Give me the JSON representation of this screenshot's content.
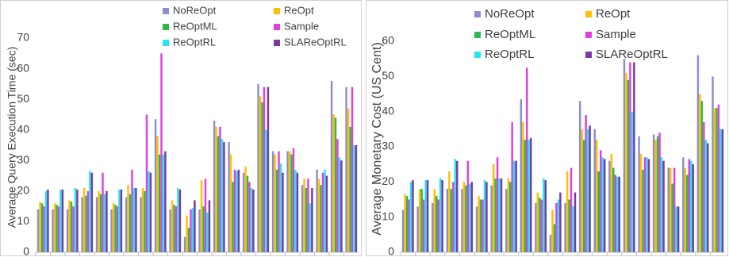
{
  "chart_data": [
    {
      "type": "bar",
      "y_label": "Average Query Execution Time (sec)",
      "categories": [
        null,
        null,
        null,
        null,
        null,
        null,
        null,
        null,
        null,
        null,
        null,
        null,
        null,
        null,
        null,
        null,
        null,
        null,
        null,
        null,
        null,
        null
      ],
      "ylim": [
        0,
        70
      ],
      "yticks": [
        0,
        10,
        20,
        30,
        40,
        50,
        60,
        70
      ],
      "series": [
        {
          "name": "NoReOpt",
          "color": "#8c8fcf",
          "values": [
            14,
            14,
            14,
            18,
            18,
            14,
            18,
            18,
            43.5,
            14,
            5,
            14,
            43,
            36,
            26,
            55,
            33,
            33,
            22,
            27,
            56,
            54
          ]
        },
        {
          "name": "ReOpt",
          "color": "#ffc000",
          "values": [
            16.5,
            16,
            17,
            21,
            20,
            16,
            22,
            21,
            38,
            17,
            12,
            23.5,
            41,
            32,
            28,
            51,
            32,
            33,
            24,
            24,
            45,
            47
          ]
        },
        {
          "name": "ReOptML",
          "color": "#2db84a",
          "values": [
            16,
            15.5,
            16.5,
            18.5,
            19,
            15.5,
            19,
            20,
            32,
            15.5,
            8,
            15,
            38,
            23,
            25,
            49,
            27,
            32,
            21,
            22,
            44,
            41
          ]
        },
        {
          "name": "Sample",
          "color": "#e040e0",
          "values": [
            15,
            15,
            15,
            20,
            26,
            15,
            27,
            45,
            65,
            15,
            14,
            24,
            41,
            27,
            23,
            54,
            33,
            34,
            24,
            26,
            37,
            54
          ]
        },
        {
          "name": "ReOptRL",
          "color": "#22e6f0",
          "values": [
            20,
            20.5,
            21,
            26.5,
            19,
            20.5,
            21,
            26.5,
            32,
            21,
            14.5,
            13,
            37,
            26.5,
            21,
            40,
            29,
            27,
            16,
            27,
            31,
            35
          ]
        },
        {
          "name": "SLAReOptRL",
          "color": "#7a3aa0",
          "values": [
            20.5,
            20.5,
            20.5,
            26,
            20,
            20.5,
            21,
            26,
            33,
            20.5,
            17,
            17,
            36,
            27,
            20.5,
            54,
            26,
            26,
            21,
            25,
            30,
            35
          ]
        }
      ]
    },
    {
      "type": "bar",
      "y_label": "Average Monetary Cost (US Cent)",
      "categories": [
        null,
        null,
        null,
        null,
        null,
        null,
        null,
        null,
        null,
        null,
        null,
        null,
        null,
        null,
        null,
        null,
        null,
        null,
        null,
        null,
        null,
        null
      ],
      "ylim": [
        0,
        60
      ],
      "yticks": [
        0,
        10,
        20,
        30,
        40,
        50,
        60
      ],
      "series": [
        {
          "name": "NoReOpt",
          "color": "#8c8fcf",
          "values": [
            12,
            13,
            14,
            18,
            18,
            13,
            19,
            18,
            43.5,
            14,
            5,
            14,
            43,
            35,
            26,
            55,
            33,
            33.5,
            24,
            27,
            56,
            50
          ]
        },
        {
          "name": "ReOpt",
          "color": "#ffc000",
          "values": [
            16.5,
            18,
            18,
            23,
            20,
            16,
            25,
            21,
            37,
            17,
            12,
            23,
            35,
            32,
            28,
            51,
            28,
            32,
            24,
            24,
            45,
            41
          ]
        },
        {
          "name": "ReOptML",
          "color": "#2db84a",
          "values": [
            16,
            18,
            16,
            18,
            19,
            15,
            21,
            20,
            32,
            15.5,
            8,
            15,
            32,
            23,
            24,
            49,
            23.5,
            33,
            19.5,
            22,
            43,
            41
          ]
        },
        {
          "name": "Sample",
          "color": "#e040e0",
          "values": [
            15,
            15,
            15,
            20,
            26,
            15,
            27,
            37,
            52.5,
            15,
            14,
            24,
            39,
            29,
            22,
            54,
            27,
            34,
            24,
            26.5,
            37,
            42
          ]
        },
        {
          "name": "ReOptRL",
          "color": "#22e6f0",
          "values": [
            20,
            20.5,
            21,
            26.5,
            19.5,
            20.5,
            21,
            26,
            32,
            21,
            15,
            13,
            35,
            27,
            21.5,
            40,
            27,
            27,
            13,
            26,
            32,
            35
          ]
        },
        {
          "name": "SLAReOptRL",
          "color": "#7a3aa0",
          "values": [
            20.5,
            20.5,
            20.5,
            26,
            20,
            20,
            21,
            26,
            32.5,
            20.5,
            17,
            17,
            36,
            26.5,
            21.5,
            54,
            26.5,
            26,
            13,
            25,
            31,
            35
          ]
        }
      ]
    }
  ]
}
